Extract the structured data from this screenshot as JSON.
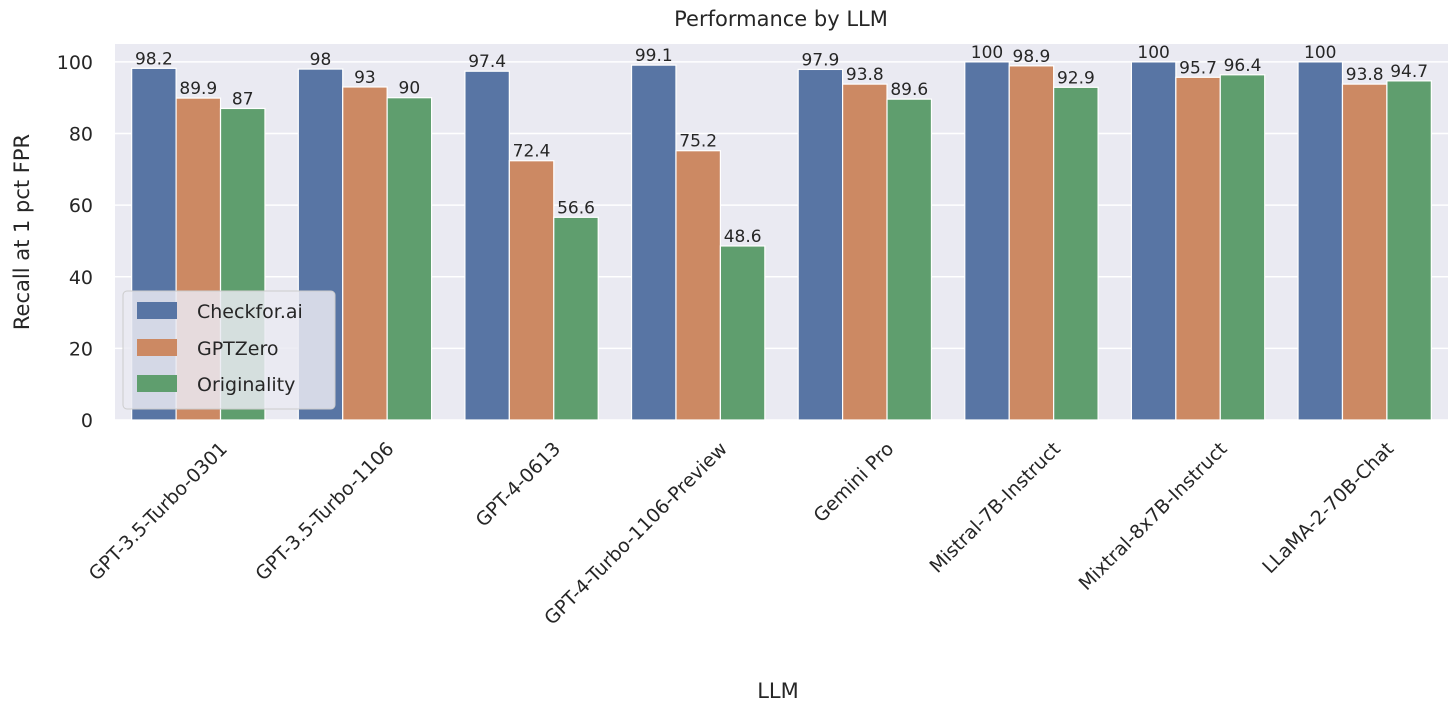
{
  "chart_data": {
    "type": "bar",
    "title": "Performance by LLM",
    "xlabel": "LLM",
    "ylabel": "Recall at 1 pct FPR",
    "ylim": [
      0,
      105
    ],
    "yticks": [
      0,
      20,
      40,
      60,
      80,
      100
    ],
    "grid": true,
    "legend_position": "lower-left",
    "categories": [
      "GPT-3.5-Turbo-0301",
      "GPT-3.5-Turbo-1106",
      "GPT-4-0613",
      "GPT-4-Turbo-1106-Preview",
      "Gemini Pro",
      "Mistral-7B-Instruct",
      "Mixtral-8x7B-Instruct",
      "LLaMA-2-70B-Chat"
    ],
    "series": [
      {
        "name": "Checkfor.ai",
        "color": "#5875a4",
        "values": [
          98.2,
          98,
          97.4,
          99.1,
          97.9,
          100,
          100,
          100
        ]
      },
      {
        "name": "GPTZero",
        "color": "#cc8963",
        "values": [
          89.9,
          93,
          72.4,
          75.2,
          93.8,
          98.9,
          95.7,
          93.8
        ]
      },
      {
        "name": "Originality",
        "color": "#5f9e6e",
        "values": [
          87,
          90,
          56.6,
          48.6,
          89.6,
          92.9,
          96.4,
          94.7
        ]
      }
    ]
  }
}
